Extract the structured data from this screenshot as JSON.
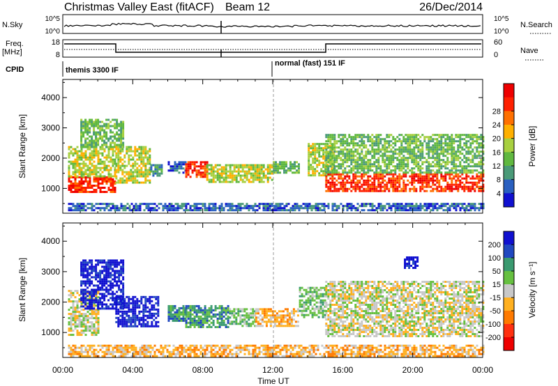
{
  "header": {
    "title": "Christmas Valley East (fitACF)",
    "beam": "Beam 12",
    "date": "26/Dec/2014"
  },
  "panels": {
    "nsky": {
      "label": "N.Sky",
      "ticks_left": [
        "10^5",
        "10^0"
      ],
      "ticks_right": [
        "10^5",
        "10^0"
      ],
      "right_label": "N.Search"
    },
    "freq": {
      "label_line1": "Freq.",
      "label_line2": "[MHz]",
      "ticks_left": [
        "18",
        "8"
      ],
      "ticks_right": [
        "60",
        "0"
      ],
      "right_label": "Nave"
    },
    "cpid": {
      "label": "CPID",
      "segments": [
        "themis 3300 IF",
        "normal (fast) 151 IF"
      ]
    }
  },
  "colors": {
    "power": [
      "#1010d0",
      "#2a60c0",
      "#4a9a78",
      "#60b840",
      "#a8d040",
      "#ffb000",
      "#ff7000",
      "#ff2000",
      "#ee0000"
    ],
    "velocity": [
      "#ee0000",
      "#ff3010",
      "#ff7a00",
      "#ffb020",
      "#c8c8c8",
      "#66c040",
      "#3a9a70",
      "#2048c0",
      "#1010d0"
    ]
  },
  "chart_data": [
    {
      "type": "heatmap",
      "name": "power",
      "xlabel": "",
      "ylabel": "Slant Range [km]",
      "yticks": [
        1000,
        2000,
        3000,
        4000
      ],
      "ylim": [
        180,
        4600
      ],
      "xticks": [
        "00:00",
        "04:00",
        "08:00",
        "12:00",
        "16:00",
        "20:00",
        "00:00"
      ],
      "xlim_hours": [
        0,
        24
      ],
      "colorbar": {
        "label": "Power [dB]",
        "ticks": [
          "4",
          "8",
          "12",
          "16",
          "20",
          "24",
          "28"
        ]
      },
      "regions": [
        {
          "t0": 0.3,
          "t1": 3.0,
          "r0": 900,
          "r1": 1400,
          "level": 7
        },
        {
          "t0": 0.3,
          "t1": 3.0,
          "r0": 1400,
          "r1": 2400,
          "level": 4
        },
        {
          "t0": 1.0,
          "t1": 3.5,
          "r0": 2400,
          "r1": 3300,
          "level": 3
        },
        {
          "t0": 3.0,
          "t1": 5.0,
          "r0": 1200,
          "r1": 2400,
          "level": 4
        },
        {
          "t0": 5.0,
          "t1": 5.7,
          "r0": 1400,
          "r1": 1800,
          "level": 2
        },
        {
          "t0": 6.0,
          "t1": 7.0,
          "r0": 1500,
          "r1": 1900,
          "level": 1
        },
        {
          "t0": 7.0,
          "t1": 8.2,
          "r0": 1400,
          "r1": 1900,
          "level": 7
        },
        {
          "t0": 8.2,
          "t1": 12.0,
          "r0": 1200,
          "r1": 1800,
          "level": 4
        },
        {
          "t0": 12.0,
          "t1": 13.5,
          "r0": 1500,
          "r1": 1900,
          "level": 3
        },
        {
          "t0": 14.0,
          "t1": 15.5,
          "r0": 1400,
          "r1": 2500,
          "level": 4
        },
        {
          "t0": 15.0,
          "t1": 24.0,
          "r0": 900,
          "r1": 1500,
          "level": 7
        },
        {
          "t0": 15.0,
          "t1": 24.0,
          "r0": 1500,
          "r1": 2800,
          "level": 3
        },
        {
          "t0": 0.3,
          "t1": 24.0,
          "r0": 250,
          "r1": 520,
          "level": 1
        }
      ]
    },
    {
      "type": "heatmap",
      "name": "velocity",
      "xlabel": "Time UT",
      "ylabel": "Slant Range [km]",
      "yticks": [
        1000,
        2000,
        3000,
        4000
      ],
      "ylim": [
        180,
        4600
      ],
      "xticks": [
        "00:00",
        "04:00",
        "08:00",
        "12:00",
        "16:00",
        "20:00",
        "00:00"
      ],
      "xlim_hours": [
        0,
        24
      ],
      "colorbar": {
        "label": "Velocity [m s⁻¹]",
        "ticks": [
          "200",
          "100",
          "50",
          "15",
          "-15",
          "-50",
          "-100",
          "-200"
        ]
      },
      "regions": [
        {
          "t0": 0.3,
          "t1": 2.0,
          "r0": 900,
          "r1": 2400,
          "level": 4
        },
        {
          "t0": 1.0,
          "t1": 3.5,
          "r0": 1800,
          "r1": 3400,
          "level": 8
        },
        {
          "t0": 3.0,
          "t1": 5.5,
          "r0": 1200,
          "r1": 2200,
          "level": 8
        },
        {
          "t0": 6.0,
          "t1": 7.0,
          "r0": 1400,
          "r1": 1900,
          "level": 6
        },
        {
          "t0": 7.0,
          "t1": 9.5,
          "r0": 1200,
          "r1": 1900,
          "level": 6
        },
        {
          "t0": 9.5,
          "t1": 11.0,
          "r0": 1200,
          "r1": 1800,
          "level": 5
        },
        {
          "t0": 11.0,
          "t1": 13.5,
          "r0": 1200,
          "r1": 1800,
          "level": 3
        },
        {
          "t0": 13.5,
          "t1": 15.0,
          "r0": 1500,
          "r1": 2500,
          "level": 5
        },
        {
          "t0": 15.0,
          "t1": 24.0,
          "r0": 900,
          "r1": 2700,
          "level": 4
        },
        {
          "t0": 19.5,
          "t1": 20.3,
          "r0": 3100,
          "r1": 3500,
          "level": 8
        },
        {
          "t0": 0.3,
          "t1": 24.0,
          "r0": 250,
          "r1": 600,
          "level": 3
        }
      ]
    }
  ]
}
